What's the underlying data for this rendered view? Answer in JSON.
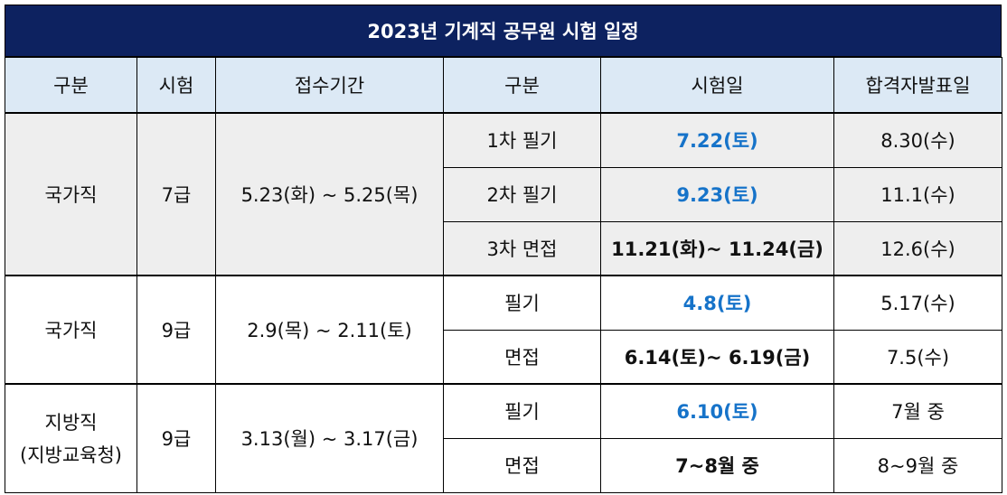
{
  "title": "2023년 기계직 공무원 시험 일정",
  "headers": [
    "구분",
    "시험",
    "접수기간",
    "구분",
    "시험일",
    "합격자발표일"
  ],
  "groups": [
    {
      "category": "국가직",
      "grade": "7급",
      "period": "5.23(화) ~ 5.25(목)",
      "rows": [
        {
          "stage": "1차 필기",
          "date": "7.22(토)",
          "result": "8.30(수)"
        },
        {
          "stage": "2차 필기",
          "date": "9.23(토)",
          "result": "11.1(수)"
        },
        {
          "stage": "3차 면접",
          "date": "11.21(화)~ 11.24(금)",
          "result": "12.6(수)"
        }
      ]
    },
    {
      "category": "국가직",
      "grade": "9급",
      "period": "2.9(목) ~ 2.11(토)",
      "rows": [
        {
          "stage": "필기",
          "date": "4.8(토)",
          "result": "5.17(수)"
        },
        {
          "stage": "면접",
          "date": "6.14(토)~ 6.19(금)",
          "result": "7.5(수)"
        }
      ]
    },
    {
      "category_line1": "지방직",
      "category_line2": "(지방교육청)",
      "grade": "9급",
      "period": "3.13(월) ~ 3.17(금)",
      "rows": [
        {
          "stage": "필기",
          "date": "6.10(토)",
          "result": "7월 중"
        },
        {
          "stage": "면접",
          "date": "7~8월 중",
          "result": "8~9월 중"
        }
      ]
    }
  ],
  "colors": {
    "title_bg": "#0d2260",
    "header_bg": "#dce9f5",
    "group1_bg": "#eeeeee",
    "accent_blue": "#1673c9"
  }
}
